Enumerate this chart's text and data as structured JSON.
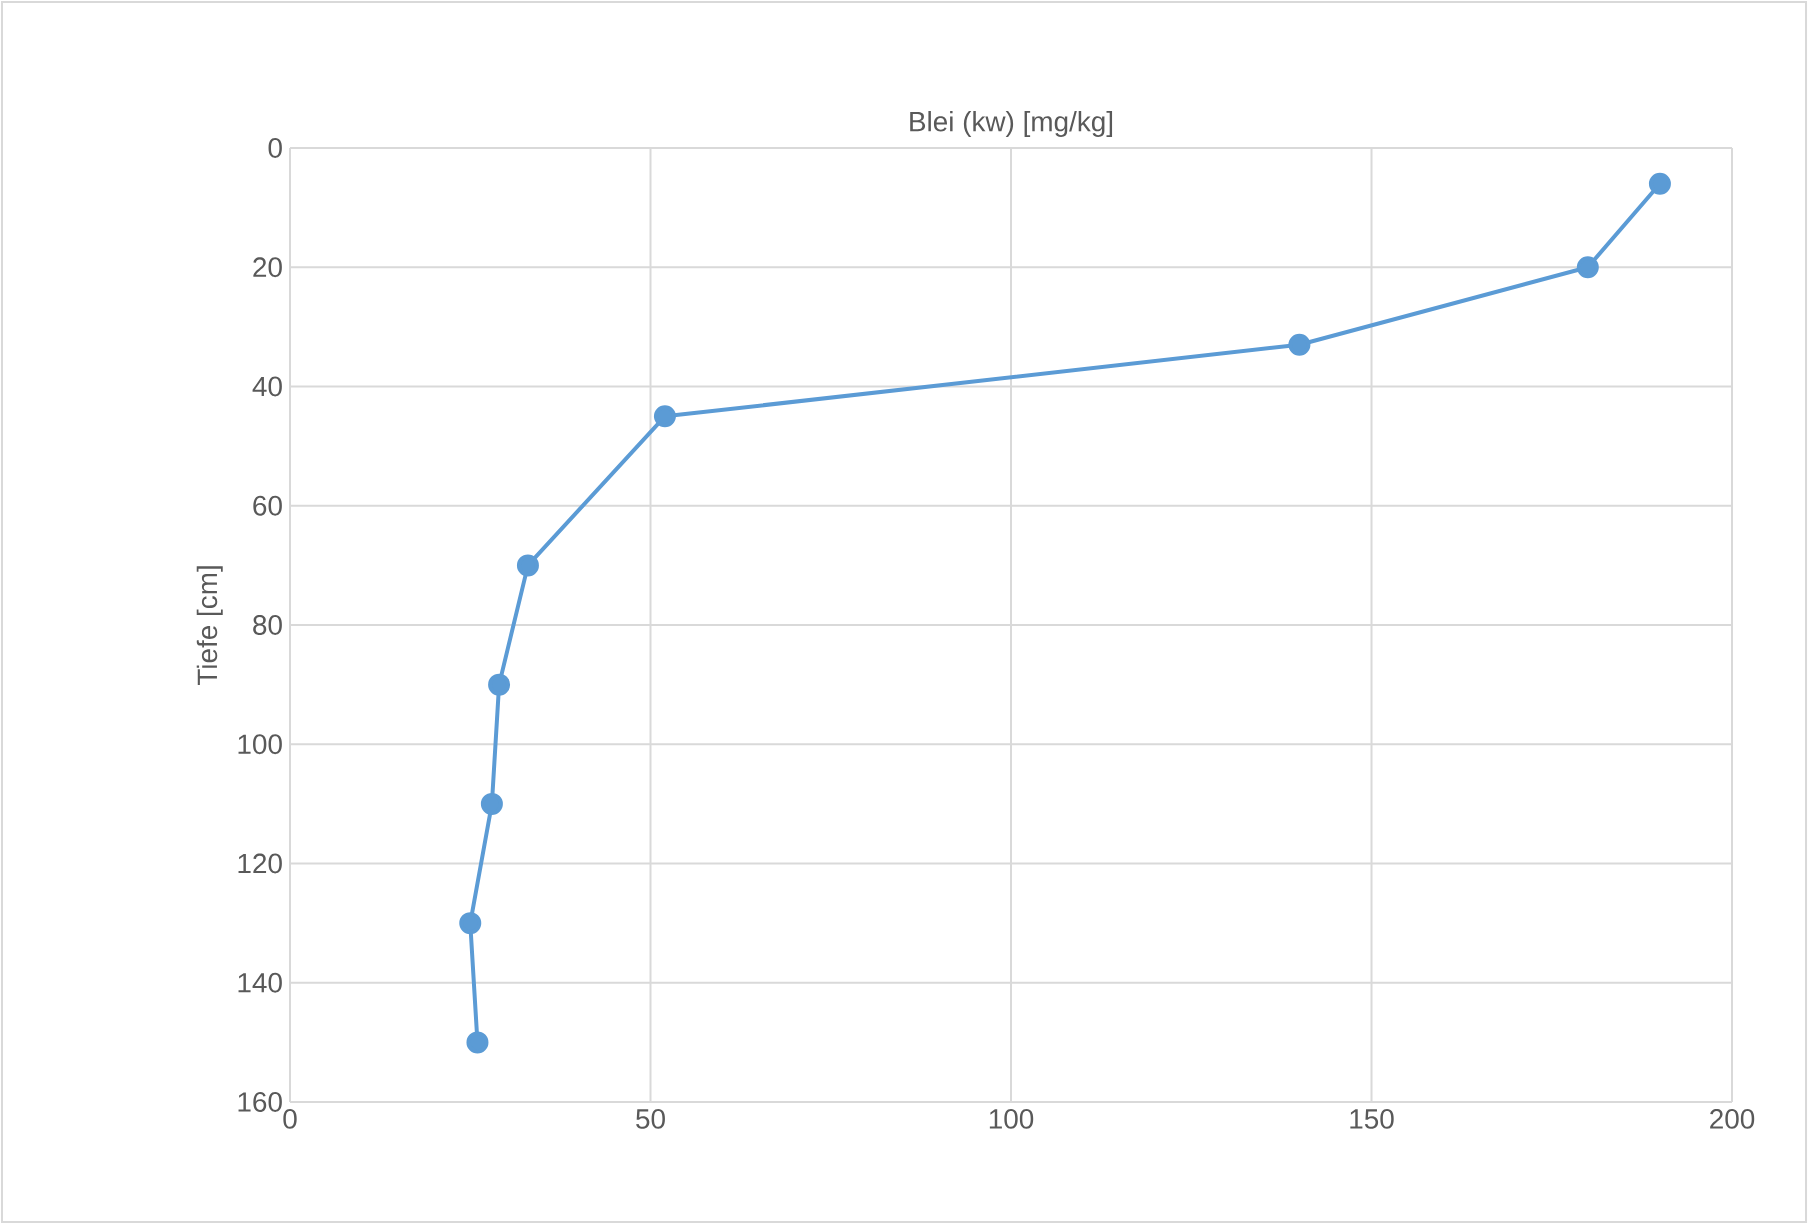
{
  "chart_data": {
    "type": "line",
    "title": "Blei (kw) [mg/kg]",
    "ylabel": "Tiefe [cm]",
    "x": [
      190,
      180,
      140,
      52,
      33,
      29,
      28,
      25,
      26
    ],
    "series": [
      {
        "color": "#5b9bd5",
        "values": [
          6,
          20,
          33,
          45,
          70,
          90,
          110,
          130,
          150
        ]
      }
    ],
    "xlim": [
      0,
      200
    ],
    "xticks": [
      0,
      50,
      100,
      150,
      200
    ],
    "ylim": [
      160,
      0
    ],
    "yticks": [
      0,
      20,
      40,
      60,
      80,
      100,
      120,
      140,
      160
    ],
    "grid": true,
    "marker": "circle",
    "line_style": "solid"
  }
}
